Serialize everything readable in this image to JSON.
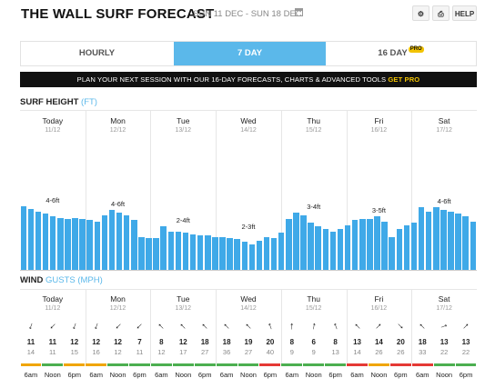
{
  "header": {
    "title": "THE WALL SURF FORECAST",
    "dates": "SUN 11 DEC - SUN 18 DEC",
    "calendar_icon": "calendar-icon",
    "settings_icon": "gear-icon",
    "print_icon": "printer-icon",
    "help_label": "HELP"
  },
  "tabs": [
    {
      "label": "HOURLY",
      "active": false
    },
    {
      "label": "7 DAY",
      "active": true
    },
    {
      "label": "16 DAY",
      "active": false,
      "badge": "PRO"
    }
  ],
  "banner": {
    "text": "PLAN YOUR NEXT SESSION WITH OUR 16-DAY FORECASTS, CHARTS & ADVANCED TOOLS ",
    "cta": "GET PRO"
  },
  "surf": {
    "title": "SURF HEIGHT",
    "unit": "(FT)"
  },
  "wind": {
    "title": "WIND",
    "gusts": "GUSTS",
    "unit": "(MPH)"
  },
  "days": [
    {
      "name": "Today",
      "date": "11/12"
    },
    {
      "name": "Mon",
      "date": "12/12"
    },
    {
      "name": "Tue",
      "date": "13/12"
    },
    {
      "name": "Wed",
      "date": "14/12"
    },
    {
      "name": "Thu",
      "date": "15/12"
    },
    {
      "name": "Fri",
      "date": "16/12"
    },
    {
      "name": "Sat",
      "date": "17/12"
    }
  ],
  "chart_data": {
    "type": "bar",
    "title": "SURF HEIGHT",
    "unit": "FT",
    "ylim": [
      0,
      10
    ],
    "values": [
      5.0,
      4.8,
      4.6,
      4.4,
      4.2,
      4.1,
      4.0,
      4.1,
      4.0,
      3.9,
      3.8,
      4.3,
      4.7,
      4.5,
      4.3,
      3.9,
      2.6,
      2.5,
      2.5,
      3.4,
      3.0,
      3.0,
      2.9,
      2.8,
      2.7,
      2.7,
      2.6,
      2.6,
      2.5,
      2.4,
      2.2,
      2.0,
      2.3,
      2.6,
      2.5,
      2.9,
      4.0,
      4.5,
      4.3,
      3.7,
      3.4,
      3.2,
      3.0,
      3.2,
      3.5,
      3.9,
      4.0,
      4.0,
      4.2,
      3.8,
      2.6,
      3.2,
      3.5,
      3.7,
      4.9,
      4.6,
      4.9,
      4.7,
      4.6,
      4.4,
      4.2,
      3.8
    ],
    "day_labels": [
      "4-6ft",
      "4-6ft",
      "2-4ft",
      "2-3ft",
      "3-4ft",
      "3-5ft",
      "4-6ft"
    ]
  },
  "wind_data": [
    {
      "dirs": [
        200,
        225,
        200
      ],
      "speeds": [
        11,
        11,
        12
      ],
      "gusts": [
        14,
        11,
        15
      ],
      "colors": [
        "#f0a500",
        "#4caf50",
        "#f0a500"
      ]
    },
    {
      "dirs": [
        200,
        225,
        225
      ],
      "speeds": [
        12,
        12,
        7
      ],
      "gusts": [
        16,
        12,
        11
      ],
      "colors": [
        "#f0a500",
        "#4caf50",
        "#4caf50"
      ]
    },
    {
      "dirs": [
        315,
        315,
        315
      ],
      "speeds": [
        8,
        12,
        18
      ],
      "gusts": [
        12,
        17,
        27
      ],
      "colors": [
        "#4caf50",
        "#4caf50",
        "#4caf50"
      ]
    },
    {
      "dirs": [
        315,
        315,
        340
      ],
      "speeds": [
        18,
        19,
        20
      ],
      "gusts": [
        36,
        27,
        40
      ],
      "colors": [
        "#4caf50",
        "#4caf50",
        "#e53935"
      ]
    },
    {
      "dirs": [
        0,
        10,
        340
      ],
      "speeds": [
        8,
        6,
        8
      ],
      "gusts": [
        9,
        9,
        13
      ],
      "colors": [
        "#4caf50",
        "#4caf50",
        "#4caf50"
      ]
    },
    {
      "dirs": [
        315,
        45,
        135
      ],
      "speeds": [
        13,
        14,
        20
      ],
      "gusts": [
        14,
        26,
        26
      ],
      "colors": [
        "#e53935",
        "#f0a500",
        "#e53935"
      ]
    },
    {
      "dirs": [
        315,
        70,
        45
      ],
      "speeds": [
        18,
        13,
        13
      ],
      "gusts": [
        33,
        22,
        22
      ],
      "colors": [
        "#e53935",
        "#4caf50",
        "#4caf50"
      ]
    }
  ],
  "time_labels": [
    "6am",
    "Noon",
    "6pm"
  ]
}
